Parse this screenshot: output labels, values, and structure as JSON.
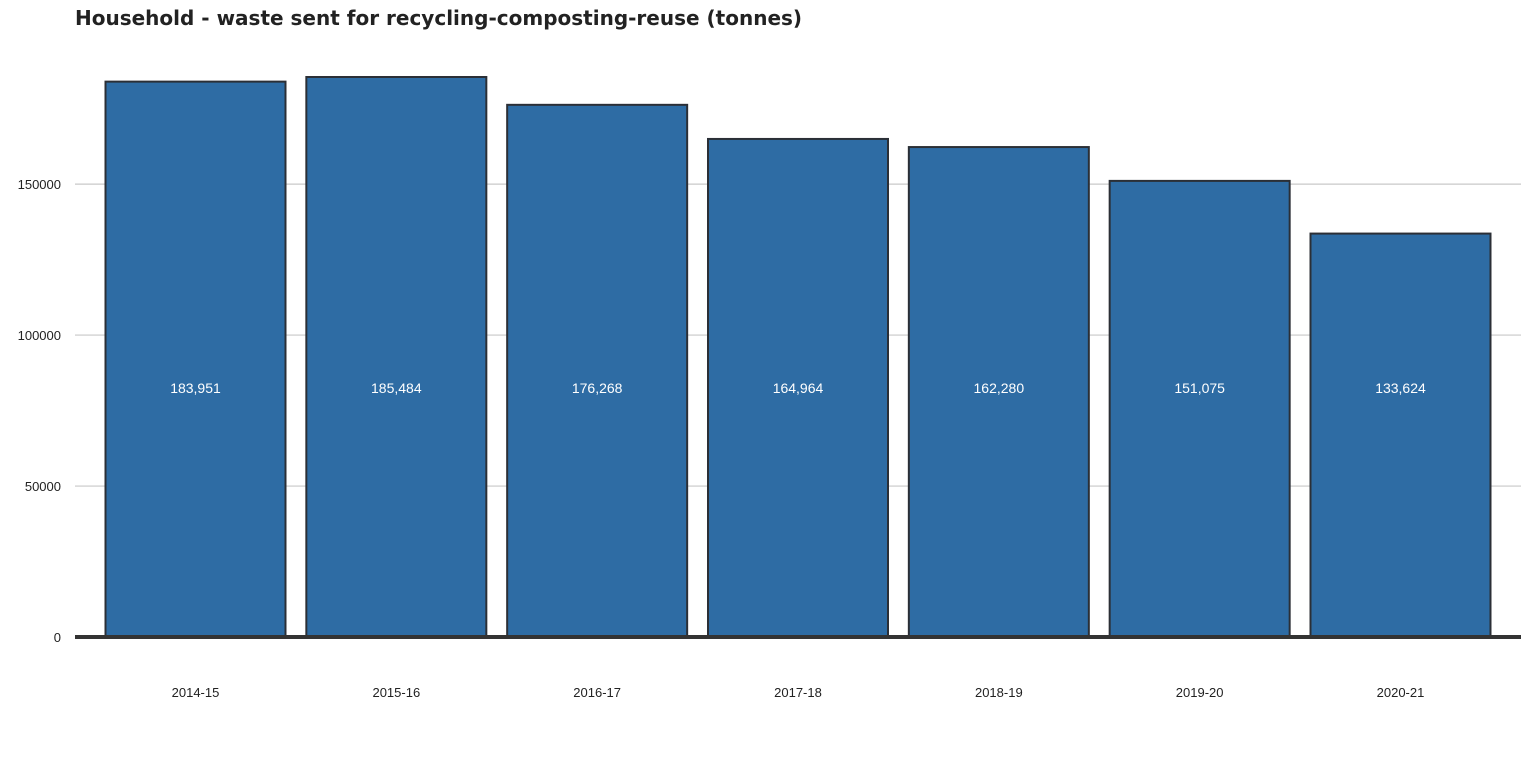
{
  "chart_data": {
    "type": "bar",
    "title": "Household - waste sent for recycling-composting-reuse (tonnes)",
    "xlabel": "",
    "ylabel": "",
    "categories": [
      "2014-15",
      "2015-16",
      "2016-17",
      "2017-18",
      "2018-19",
      "2019-20",
      "2020-21"
    ],
    "values": [
      183951,
      185484,
      176268,
      164964,
      162280,
      151075,
      133624
    ],
    "data_labels": [
      "183,951",
      "185,484",
      "176,268",
      "164,964",
      "162,280",
      "151,075",
      "133,624"
    ],
    "ylim": [
      0,
      185484
    ],
    "yticks": [
      0,
      50000,
      100000,
      150000
    ],
    "ytick_labels": [
      "0",
      "50000",
      "100000",
      "150000"
    ],
    "grid": true,
    "legend": "none",
    "colors": {
      "bar_fill": "#2e6ca4",
      "bar_stroke": "#2b2f36",
      "grid": "#c8c8c8",
      "baseline": "#333333",
      "data_label": "#ffffff",
      "text": "#222222"
    }
  }
}
